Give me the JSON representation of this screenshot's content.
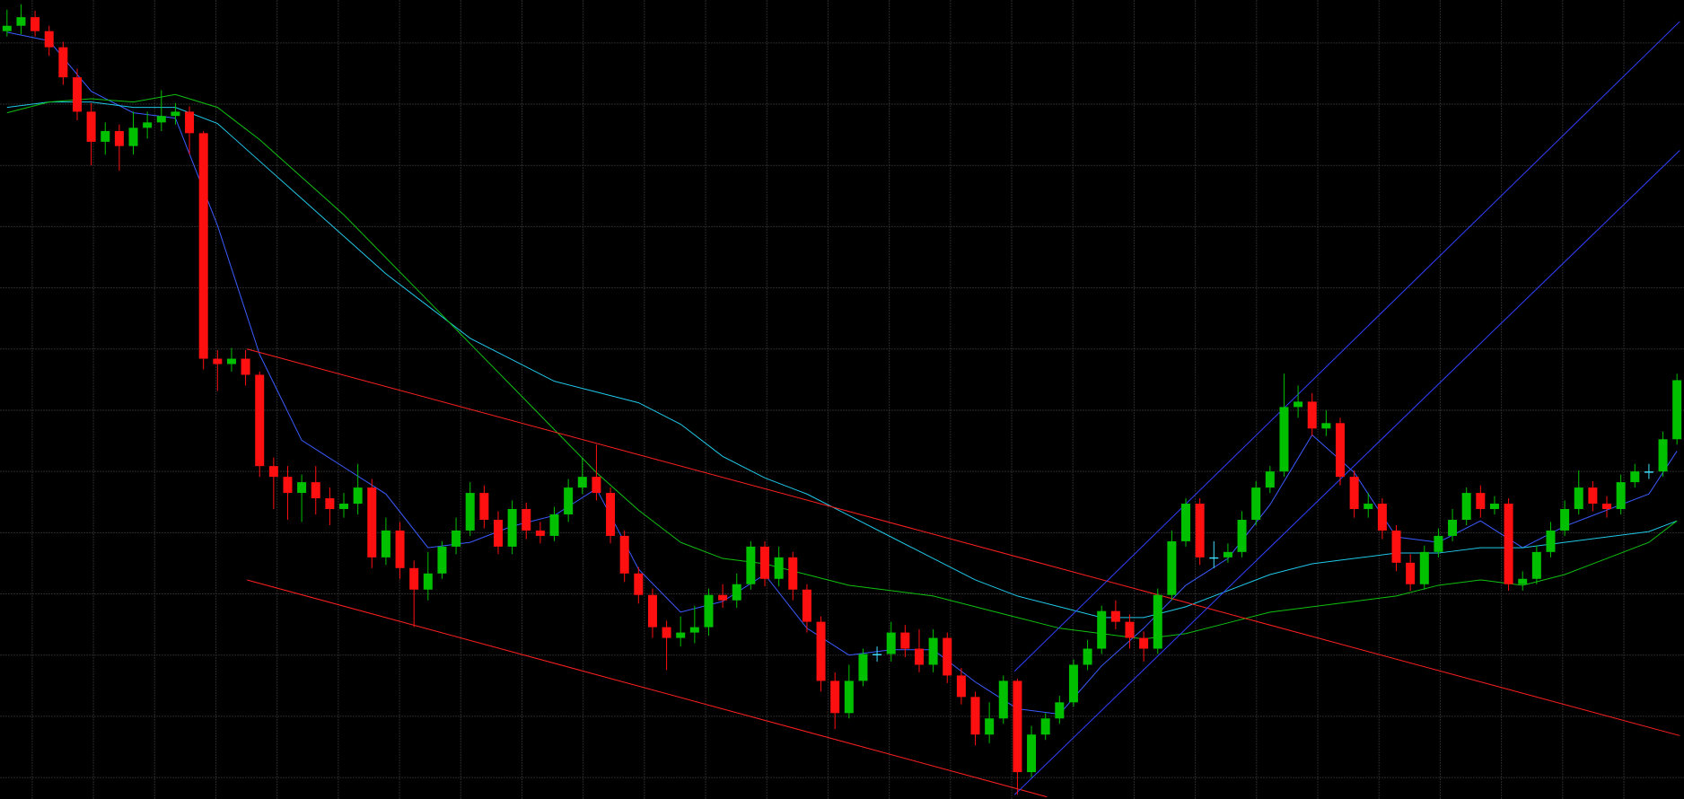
{
  "chart_data": {
    "type": "candlestick",
    "grid": true,
    "background": "#000000",
    "grid_color": "#2b2b2b",
    "up_color": "#00c000",
    "down_color": "#ff1010",
    "flat_color": "#40e0ff",
    "xlim": [
      -0.5,
      119.5
    ],
    "ylim": [
      0,
      744
    ],
    "open": [
      715,
      720,
      728,
      715,
      700,
      672,
      640,
      612,
      622,
      608,
      625,
      630,
      636,
      640,
      620,
      410,
      405,
      410,
      395,
      310,
      300,
      285,
      295,
      280,
      270,
      275,
      290,
      225,
      250,
      215,
      195,
      210,
      235,
      250,
      285,
      260,
      235,
      270,
      250,
      245,
      265,
      290,
      300,
      285,
      245,
      210,
      190,
      160,
      150,
      155,
      160,
      190,
      185,
      200,
      235,
      205,
      225,
      195,
      165,
      110,
      80,
      110,
      135,
      135,
      155,
      140,
      125,
      150,
      115,
      95,
      60,
      75,
      110,
      25,
      60,
      75,
      90,
      125,
      140,
      175,
      165,
      150,
      140,
      190,
      240,
      275,
      225,
      225,
      230,
      260,
      290,
      305,
      365,
      370,
      345,
      350,
      300,
      270,
      275,
      250,
      220,
      200,
      230,
      245,
      260,
      285,
      270,
      275,
      200,
      205,
      230,
      250,
      270,
      290,
      275,
      270,
      295,
      305,
      305,
      335
    ],
    "high": [
      735,
      740,
      734,
      720,
      705,
      680,
      648,
      630,
      628,
      640,
      640,
      660,
      648,
      645,
      622,
      418,
      420,
      418,
      398,
      318,
      310,
      302,
      310,
      290,
      285,
      312,
      298,
      262,
      258,
      222,
      230,
      240,
      262,
      295,
      292,
      268,
      278,
      276,
      258,
      272,
      298,
      318,
      330,
      290,
      250,
      216,
      196,
      166,
      170,
      180,
      196,
      200,
      210,
      240,
      240,
      235,
      230,
      200,
      170,
      118,
      125,
      140,
      142,
      165,
      162,
      158,
      158,
      155,
      122,
      100,
      90,
      115,
      112,
      68,
      80,
      96,
      130,
      148,
      180,
      185,
      172,
      156,
      196,
      250,
      280,
      280,
      240,
      238,
      268,
      296,
      310,
      396,
      385,
      378,
      362,
      355,
      306,
      285,
      280,
      255,
      228,
      236,
      252,
      270,
      290,
      292,
      282,
      280,
      212,
      236,
      258,
      278,
      306,
      296,
      282,
      302,
      312,
      312,
      342,
      396
    ],
    "low": [
      710,
      712,
      710,
      692,
      665,
      632,
      590,
      600,
      585,
      600,
      615,
      622,
      628,
      600,
      400,
      380,
      398,
      385,
      300,
      270,
      260,
      258,
      265,
      255,
      262,
      265,
      215,
      218,
      205,
      160,
      185,
      205,
      228,
      245,
      252,
      228,
      228,
      242,
      238,
      240,
      258,
      284,
      278,
      238,
      202,
      182,
      150,
      120,
      142,
      145,
      152,
      178,
      178,
      195,
      198,
      198,
      185,
      155,
      100,
      65,
      75,
      105,
      128,
      128,
      132,
      118,
      118,
      108,
      88,
      50,
      52,
      70,
      4,
      20,
      55,
      70,
      86,
      120,
      135,
      158,
      140,
      128,
      135,
      185,
      235,
      218,
      215,
      220,
      225,
      255,
      285,
      300,
      355,
      338,
      338,
      292,
      262,
      262,
      242,
      212,
      194,
      195,
      225,
      240,
      255,
      262,
      265,
      194,
      194,
      200,
      225,
      245,
      265,
      268,
      262,
      265,
      290,
      298,
      300,
      330
    ],
    "close": [
      720,
      728,
      715,
      700,
      672,
      640,
      612,
      622,
      608,
      625,
      630,
      636,
      640,
      620,
      410,
      405,
      410,
      395,
      310,
      300,
      285,
      295,
      280,
      270,
      275,
      290,
      225,
      250,
      215,
      195,
      210,
      235,
      250,
      285,
      260,
      235,
      270,
      250,
      245,
      265,
      290,
      300,
      285,
      245,
      210,
      190,
      160,
      150,
      155,
      160,
      190,
      185,
      200,
      235,
      205,
      225,
      195,
      165,
      110,
      80,
      110,
      135,
      135,
      155,
      140,
      125,
      150,
      115,
      95,
      60,
      75,
      110,
      25,
      60,
      75,
      90,
      125,
      140,
      175,
      165,
      150,
      140,
      190,
      240,
      275,
      225,
      225,
      230,
      260,
      290,
      305,
      365,
      370,
      345,
      350,
      300,
      270,
      275,
      250,
      220,
      200,
      230,
      245,
      260,
      285,
      270,
      275,
      200,
      205,
      230,
      250,
      270,
      290,
      275,
      270,
      295,
      305,
      305,
      335,
      390
    ],
    "overlays": [
      {
        "color": "#3a5cff",
        "x": [
          0,
          3,
          6,
          9,
          12,
          15,
          18,
          21,
          24,
          27,
          30,
          33,
          36,
          39,
          42,
          45,
          48,
          51,
          54,
          57,
          60,
          63,
          66,
          69,
          72,
          75,
          78,
          81,
          84,
          87,
          90,
          93,
          96,
          99,
          102,
          105,
          108,
          111,
          114,
          117,
          119
        ],
        "values": [
          714,
          706,
          659,
          639,
          634,
          534,
          414,
          334,
          309,
          284,
          234,
          239,
          254,
          264,
          289,
          214,
          174,
          184,
          209,
          159,
          134,
          139,
          139,
          109,
          84,
          79,
          124,
          159,
          199,
          224,
          274,
          339,
          304,
          244,
          239,
          259,
          234,
          254,
          269,
          284,
          324
        ]
      },
      {
        "color": "#20c8e8",
        "x": [
          0,
          3,
          6,
          9,
          12,
          15,
          18,
          21,
          24,
          27,
          30,
          33,
          36,
          39,
          42,
          45,
          48,
          51,
          54,
          57,
          60,
          63,
          66,
          69,
          72,
          75,
          78,
          81,
          84,
          87,
          90,
          93,
          96,
          99,
          102,
          105,
          108,
          111,
          114,
          117,
          119
        ],
        "values": [
          644,
          649,
          649,
          644,
          644,
          629,
          594,
          559,
          524,
          489,
          459,
          429,
          409,
          389,
          379,
          369,
          349,
          319,
          299,
          284,
          264,
          244,
          224,
          204,
          189,
          179,
          169,
          169,
          179,
          194,
          209,
          219,
          224,
          229,
          229,
          234,
          234,
          239,
          244,
          249,
          259
        ]
      },
      {
        "color": "#10c010",
        "x": [
          0,
          3,
          6,
          9,
          12,
          15,
          18,
          21,
          24,
          27,
          30,
          33,
          36,
          39,
          42,
          45,
          48,
          51,
          54,
          57,
          60,
          63,
          66,
          69,
          72,
          75,
          78,
          81,
          84,
          87,
          90,
          93,
          96,
          99,
          102,
          105,
          108,
          111,
          114,
          117,
          119
        ],
        "values": [
          639,
          649,
          652,
          649,
          656,
          644,
          614,
          579,
          544,
          504,
          464,
          424,
          384,
          344,
          304,
          269,
          239,
          224,
          219,
          209,
          199,
          194,
          189,
          179,
          169,
          159,
          154,
          149,
          154,
          164,
          174,
          179,
          184,
          189,
          199,
          204,
          199,
          209,
          224,
          239,
          259
        ]
      },
      {
        "color": "#ff2020",
        "x": [
          17.1,
          119.2
        ],
        "values": [
          419,
          59
        ]
      },
      {
        "color": "#ff2020",
        "x": [
          17.1,
          74.1
        ],
        "values": [
          204,
          2
        ]
      },
      {
        "color": "#3040ff",
        "x": [
          71.8,
          119.2
        ],
        "values": [
          4,
          604
        ]
      },
      {
        "color": "#3040ff",
        "x": [
          71.8,
          119.2
        ],
        "values": [
          119,
          724
        ]
      }
    ]
  }
}
